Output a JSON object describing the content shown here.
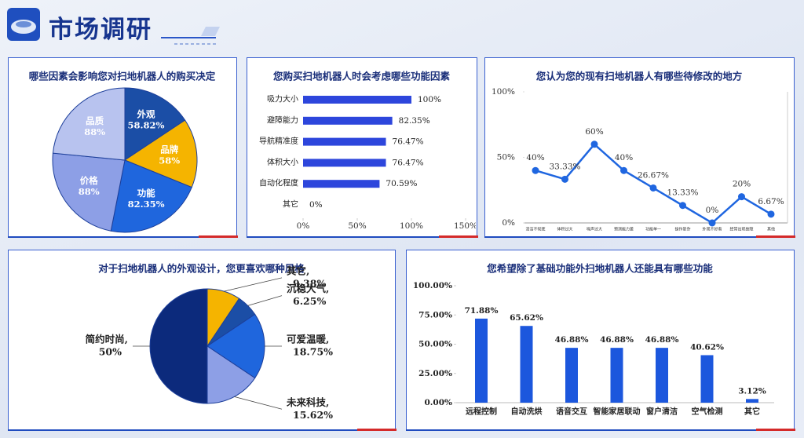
{
  "header": {
    "title": "市场调研"
  },
  "chart_data": [
    {
      "type": "pie",
      "title": "哪些因素会影响您对扫地机器人的购买决定",
      "categories": [
        "外观",
        "品牌",
        "功能",
        "价格",
        "品质"
      ],
      "values": [
        58.82,
        58,
        82.35,
        88,
        88
      ],
      "value_labels": [
        "58.82%",
        "58%",
        "82.35%",
        "88%",
        "88%"
      ],
      "colors": [
        "#1b4ea6",
        "#f5b400",
        "#1f66dd",
        "#8d9fe6",
        "#b8c3ef"
      ]
    },
    {
      "type": "bar",
      "orientation": "horizontal",
      "title": "您购买扫地机器人时会考虑哪些功能因素",
      "categories": [
        "吸力大小",
        "避障能力",
        "导航精准度",
        "体积大小",
        "自动化程度",
        "其它"
      ],
      "values": [
        100,
        82.35,
        76.47,
        76.47,
        70.59,
        0
      ],
      "value_labels": [
        "100%",
        "82.35%",
        "76.47%",
        "76.47%",
        "70.59%",
        "0%"
      ],
      "color": "#2d46dc",
      "xlim": [
        0,
        150
      ],
      "xticks": [
        {
          "value": 0,
          "label": "0%"
        },
        {
          "value": 50,
          "label": "50%"
        },
        {
          "value": 100,
          "label": "100%"
        },
        {
          "value": 150,
          "label": "150%"
        }
      ]
    },
    {
      "type": "line",
      "title": "您认为您的现有扫地机器人有哪些待修改的地方",
      "categories": [
        "清洁不彻底",
        "体积过大",
        "噪声过大",
        "预测能力差",
        "功能单一",
        "操作复杂",
        "外观不好看",
        "经常出现故障",
        "其他"
      ],
      "values": [
        40,
        33.33,
        60,
        40,
        26.67,
        13.33,
        0,
        20,
        6.67
      ],
      "value_labels": [
        "40%",
        "33.33%",
        "60%",
        "40%",
        "26.67%",
        "13.33%",
        "0%",
        "20%",
        "6.67%"
      ],
      "color": "#1f66e0",
      "ylim": [
        0,
        100
      ],
      "yticks": [
        {
          "value": 0,
          "label": "0%"
        },
        {
          "value": 50,
          "label": "50%"
        },
        {
          "value": 100,
          "label": "100%"
        }
      ]
    },
    {
      "type": "pie",
      "title": "对于扫地机器人的外观设计，您更喜欢哪种风格",
      "categories": [
        "其它,",
        "沉稳大气,",
        "可爱温暖,",
        "未来科技,",
        "简约时尚,"
      ],
      "values": [
        9.38,
        6.25,
        18.75,
        15.62,
        50
      ],
      "value_labels": [
        "9.38%",
        "6.25%",
        "18.75%",
        "15.62%",
        "50%"
      ],
      "colors": [
        "#f5b400",
        "#1b4ea6",
        "#1f66dd",
        "#8d9fe6",
        "#0c2a7c"
      ]
    },
    {
      "type": "bar",
      "orientation": "vertical",
      "title": "您希望除了基础功能外扫地机器人还能具有哪些功能",
      "categories": [
        "远程控制",
        "自动洗烘",
        "语音交互",
        "智能家居联动",
        "窗户清洁",
        "空气检测",
        "其它"
      ],
      "values": [
        71.88,
        65.62,
        46.88,
        46.88,
        46.88,
        40.62,
        3.12
      ],
      "value_labels": [
        "71.88%",
        "65.62%",
        "46.88%",
        "46.88%",
        "46.88%",
        "40.62%",
        "3.12%"
      ],
      "color": "#1c57dd",
      "ylim": [
        0,
        100
      ],
      "yticks": [
        {
          "value": 0,
          "label": "0.00%"
        },
        {
          "value": 25,
          "label": "25.00%"
        },
        {
          "value": 50,
          "label": "50.00%"
        },
        {
          "value": 75,
          "label": "75.00%"
        },
        {
          "value": 100,
          "label": "100.00%"
        }
      ]
    }
  ]
}
